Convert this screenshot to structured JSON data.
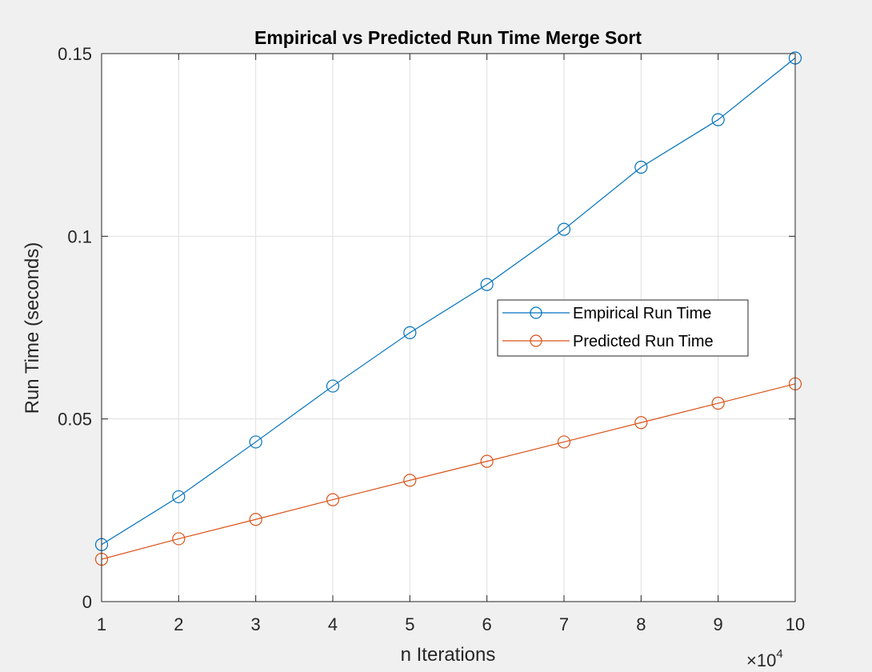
{
  "chart_data": {
    "type": "line",
    "title": "Empirical vs Predicted Run Time Merge Sort",
    "xlabel": "n Iterations",
    "ylabel": "Run Time (seconds)",
    "x_exponent_base": "×10",
    "x_exponent_power": "4",
    "x": [
      1,
      2,
      3,
      4,
      5,
      6,
      7,
      8,
      9,
      10
    ],
    "xlim": [
      1,
      10
    ],
    "ylim": [
      0,
      0.15
    ],
    "xticks": [
      1,
      2,
      3,
      4,
      5,
      6,
      7,
      8,
      9,
      10
    ],
    "xtick_labels": [
      "1",
      "2",
      "3",
      "4",
      "5",
      "6",
      "7",
      "8",
      "9",
      "10"
    ],
    "yticks": [
      0,
      0.05,
      0.1,
      0.15
    ],
    "ytick_labels": [
      "0",
      "0.05",
      "0.1",
      "0.15"
    ],
    "grid": true,
    "legend_placement": "center-right",
    "series": [
      {
        "name": "Empirical Run Time",
        "color": "#0072bd",
        "marker": "circle-open",
        "values": [
          0.0156,
          0.0287,
          0.0437,
          0.059,
          0.0736,
          0.0868,
          0.1019,
          0.1189,
          0.1319,
          0.1488
        ]
      },
      {
        "name": "Predicted Run Time",
        "color": "#d95319",
        "marker": "circle-open",
        "values": [
          0.0116,
          0.0172,
          0.0225,
          0.0279,
          0.0332,
          0.0384,
          0.0437,
          0.049,
          0.0543,
          0.0596
        ]
      }
    ]
  }
}
